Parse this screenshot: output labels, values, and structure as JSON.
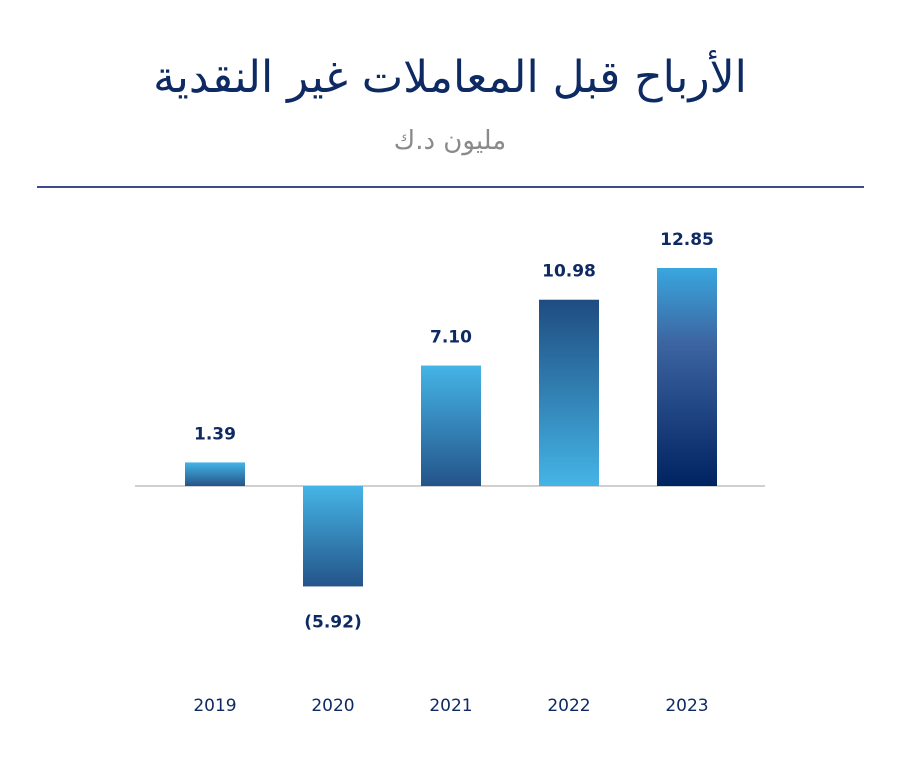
{
  "title": "الأرباح قبل المعاملات غير النقدية",
  "subtitle": "مليون د.ك",
  "chart_data": {
    "type": "bar",
    "title": "الأرباح قبل المعاملات غير النقدية",
    "subtitle": "مليون د.ك",
    "categories": [
      "2019",
      "2020",
      "2021",
      "2022",
      "2023"
    ],
    "values": [
      1.39,
      -5.92,
      7.1,
      10.98,
      12.85
    ],
    "value_labels": [
      "1.39",
      "(5.92)",
      "7.10",
      "10.98",
      "12.85"
    ],
    "xlabel": "",
    "ylabel": "",
    "grid": false,
    "legend": "none",
    "colors": {
      "dark_navy": "#002361",
      "mid_blue": "#2b5c8f",
      "light_blue": "#45b4e6",
      "text": "#0e2a63",
      "baseline": "#b5b5b5"
    }
  }
}
